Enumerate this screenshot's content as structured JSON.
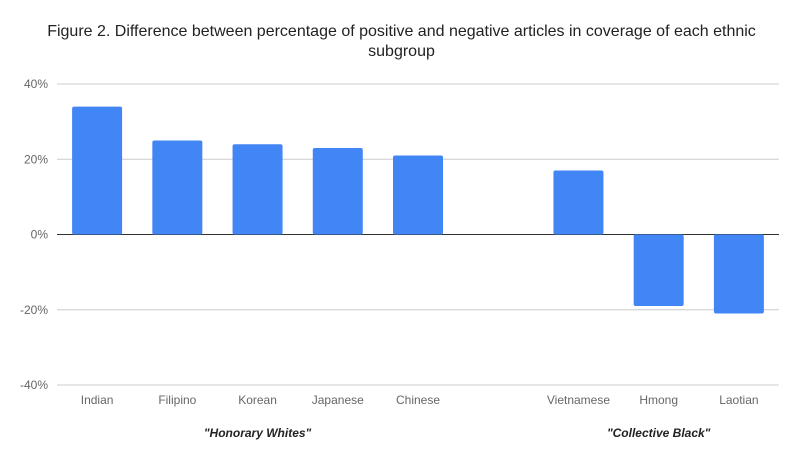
{
  "chart_data": {
    "type": "bar",
    "title_lines": [
      "Figure 2. Difference between percentage of positive and negative articles in coverage of each ethnic",
      "subgroup"
    ],
    "categories": [
      "Indian",
      "Filipino",
      "Korean",
      "Japanese",
      "Chinese",
      "",
      "Vietnamese",
      "Hmong",
      "Laotian"
    ],
    "values": [
      34,
      25,
      24,
      23,
      21,
      null,
      17,
      -19,
      -21
    ],
    "ylim": [
      -40,
      40
    ],
    "y_ticks": [
      {
        "value": 40,
        "label": "40%"
      },
      {
        "value": 20,
        "label": "20%"
      },
      {
        "value": 0,
        "label": "0%"
      },
      {
        "value": -20,
        "label": "-20%"
      },
      {
        "value": -40,
        "label": "-40%"
      }
    ],
    "groups": [
      {
        "label": "\"Honorary Whites\"",
        "from": 0,
        "to": 4
      },
      {
        "label": "\"Collective Black\"",
        "from": 6,
        "to": 8
      }
    ],
    "grid": true,
    "legend": "none",
    "bar_color": "#4285f4"
  }
}
